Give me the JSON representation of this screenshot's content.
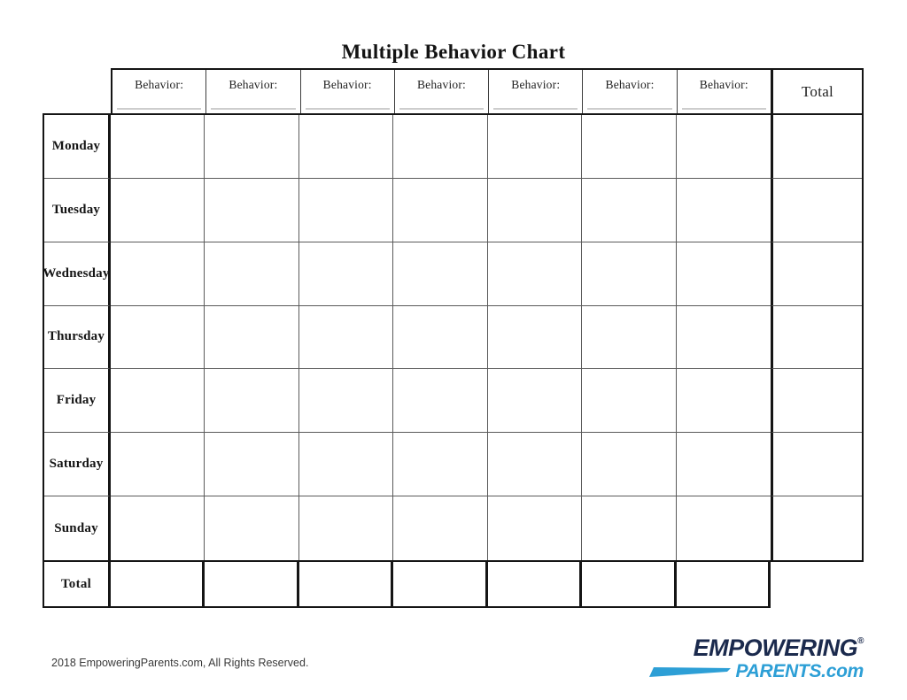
{
  "title": "Multiple Behavior Chart",
  "table": {
    "behavior_headers": [
      "Behavior:",
      "Behavior:",
      "Behavior:",
      "Behavior:",
      "Behavior:",
      "Behavior:",
      "Behavior:"
    ],
    "total_column_label": "Total",
    "days": [
      "Monday",
      "Tuesday",
      "Wednesday",
      "Thursday",
      "Friday",
      "Saturday",
      "Sunday"
    ],
    "total_row_label": "Total"
  },
  "footer": {
    "copyright": "2018 EmpoweringParents.com, All Rights Reserved."
  },
  "logo": {
    "line1": "EMPOWERING",
    "registered_mark": "®",
    "parents": "PARENTS",
    "domain": ".com",
    "navy_color": "#1b2a4d",
    "blue_color": "#2d9fd6"
  }
}
